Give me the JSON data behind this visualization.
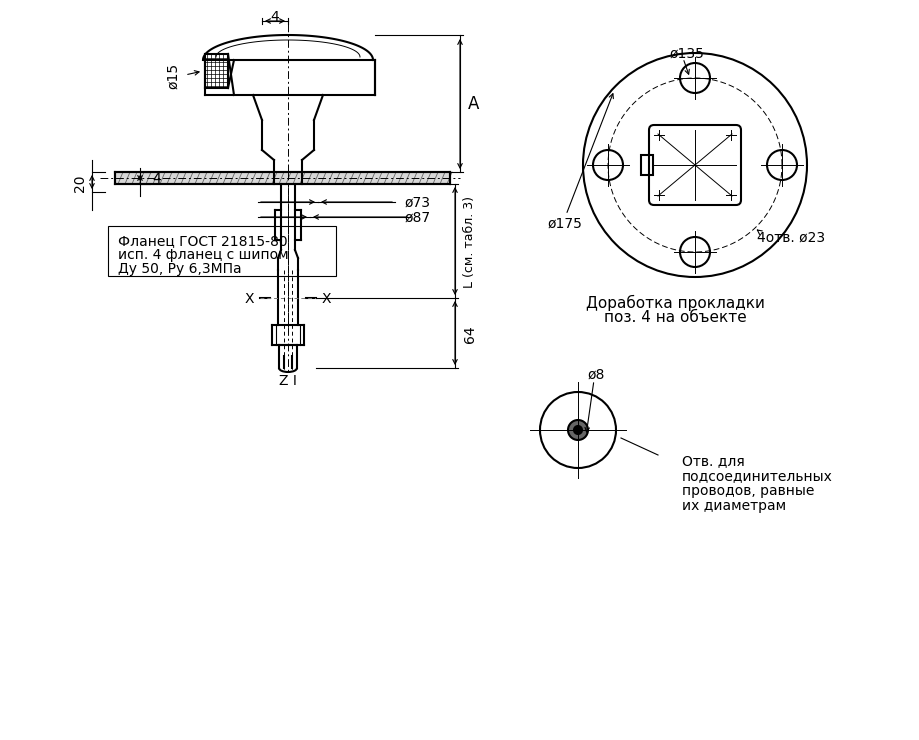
{
  "bg_color": "#ffffff",
  "line_color": "#000000",
  "line_width": 1.5,
  "thin_line": 0.7,
  "dim_line": 0.8,
  "texts": {
    "dim_4_top": "4",
    "dim_phi15": "ø15",
    "dim_20": "20",
    "dim_4_flange": "4",
    "dim_phi73": "ø73",
    "dim_phi87": "ø87",
    "dim_A": "A",
    "dim_L": "L (см. табл. 3)",
    "dim_64": "64",
    "dim_X_left": "X",
    "dim_X_right": "X",
    "dim_Z": "Z I",
    "flange_text1": "Фланец ГОСТ 21815-80",
    "flange_text2": "исп. 4 фланец с шипом",
    "flange_text3": "Ду 50, Ру 6,3МПа",
    "dim_phi135": "ø135",
    "dim_phi175": "ø175",
    "dim_4otv_phi23": "4отв. ø23",
    "dorabotka1": "Доработка прокладки",
    "dorabotka2": "поз. 4 на объекте",
    "dim_phi8": "ø8",
    "otv_text1": "Отв. для",
    "otv_text2": "подсоединительных",
    "otv_text3": "проводов, равные",
    "otv_text4": "их диаметрам"
  }
}
